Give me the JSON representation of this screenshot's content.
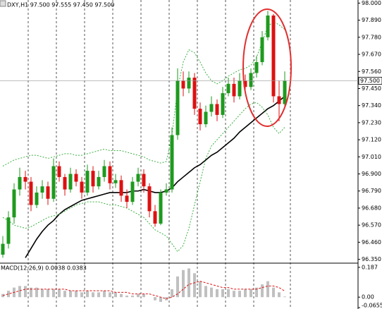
{
  "chart_data": [
    {
      "type": "candlestick",
      "title": "DXY,H1 97.500 97.555 97.450 97.500",
      "up_color": "#1e9a1e",
      "down_color": "#dd1111",
      "grid": true,
      "ylim": [
        96.33,
        98.02
      ],
      "yticks": [
        {
          "value": 98.0,
          "label": "98.000"
        },
        {
          "value": 97.89,
          "label": "97.890"
        },
        {
          "value": 97.78,
          "label": "97.780"
        },
        {
          "value": 97.67,
          "label": "97.670"
        },
        {
          "value": 97.56,
          "label": "97.560"
        },
        {
          "value": 97.45,
          "label": "97.450"
        },
        {
          "value": 97.34,
          "label": "97.340"
        },
        {
          "value": 97.23,
          "label": "97.230"
        },
        {
          "value": 97.12,
          "label": "97.120"
        },
        {
          "value": 97.01,
          "label": "97.010"
        },
        {
          "value": 96.9,
          "label": "96.900"
        },
        {
          "value": 96.79,
          "label": "96.790"
        },
        {
          "value": 96.68,
          "label": "96.680"
        },
        {
          "value": 96.57,
          "label": "96.570"
        },
        {
          "value": 96.46,
          "label": "96.460"
        },
        {
          "value": 96.35,
          "label": "96.350"
        }
      ],
      "last_price": {
        "value": 97.5,
        "label": "97.500"
      },
      "open": [
        96.38,
        96.45,
        96.62,
        96.8,
        96.88,
        96.85,
        96.7,
        96.78,
        96.82,
        96.74,
        96.95,
        96.88,
        96.8,
        96.9,
        96.85,
        96.78,
        96.92,
        96.82,
        96.88,
        96.95,
        96.84,
        96.86,
        96.76,
        96.72,
        96.85,
        96.9,
        96.82,
        96.66,
        96.58,
        96.78,
        96.8,
        97.15,
        97.5,
        97.45,
        97.52,
        97.32,
        97.22,
        97.3,
        97.35,
        97.28,
        97.42,
        97.48,
        97.4,
        97.5,
        97.46,
        97.55,
        97.62,
        97.78,
        97.92,
        97.4,
        97.35
      ],
      "high": [
        96.5,
        96.66,
        96.84,
        96.94,
        96.92,
        96.88,
        96.82,
        96.86,
        96.85,
        97.0,
        96.98,
        96.9,
        96.94,
        96.93,
        96.88,
        96.96,
        96.95,
        96.92,
        96.99,
        96.98,
        96.9,
        96.89,
        96.8,
        96.88,
        96.94,
        96.93,
        96.84,
        96.7,
        96.8,
        96.84,
        97.2,
        97.58,
        97.56,
        97.56,
        97.55,
        97.36,
        97.34,
        97.4,
        97.38,
        97.46,
        97.52,
        97.52,
        97.55,
        97.54,
        97.58,
        97.66,
        97.82,
        97.95,
        97.93,
        97.5,
        97.56
      ],
      "low": [
        96.36,
        96.42,
        96.58,
        96.76,
        96.8,
        96.66,
        96.68,
        96.74,
        96.7,
        96.72,
        96.85,
        96.76,
        96.78,
        96.82,
        96.74,
        96.76,
        96.78,
        96.8,
        96.85,
        96.8,
        96.81,
        96.72,
        96.68,
        96.7,
        96.82,
        96.78,
        96.62,
        96.56,
        96.57,
        96.76,
        96.78,
        97.12,
        97.4,
        97.42,
        97.28,
        97.18,
        97.2,
        97.27,
        97.24,
        97.26,
        97.4,
        97.36,
        97.38,
        97.44,
        97.44,
        97.52,
        97.6,
        97.76,
        97.36,
        97.24,
        97.33
      ],
      "close": [
        96.45,
        96.62,
        96.8,
        96.88,
        96.85,
        96.7,
        96.78,
        96.82,
        96.74,
        96.95,
        96.88,
        96.8,
        96.9,
        96.85,
        96.78,
        96.92,
        96.82,
        96.88,
        96.95,
        96.84,
        96.86,
        96.76,
        96.72,
        96.85,
        96.9,
        96.82,
        96.66,
        96.58,
        96.78,
        96.8,
        97.15,
        97.5,
        97.45,
        97.52,
        97.32,
        97.22,
        97.3,
        97.35,
        97.28,
        97.42,
        97.48,
        97.4,
        97.5,
        97.46,
        97.55,
        97.62,
        97.78,
        97.92,
        97.4,
        97.35,
        97.5
      ],
      "lines": [
        {
          "color": "#000000",
          "style": "solid",
          "values": [
            null,
            null,
            null,
            null,
            96.36,
            96.42,
            96.48,
            96.53,
            96.57,
            96.6,
            96.64,
            96.67,
            96.69,
            96.71,
            96.73,
            96.74,
            96.75,
            96.76,
            96.77,
            96.78,
            96.78,
            96.78,
            96.78,
            96.79,
            96.79,
            96.8,
            96.79,
            96.78,
            96.78,
            96.79,
            96.81,
            96.85,
            96.88,
            96.91,
            96.94,
            96.96,
            96.99,
            97.02,
            97.04,
            97.07,
            97.1,
            97.13,
            97.17,
            97.2,
            97.23,
            97.26,
            97.29,
            97.32,
            97.34,
            97.37,
            97.4
          ]
        },
        {
          "color": "#3cb043",
          "style": "dotted",
          "values": [
            96.95,
            96.97,
            96.99,
            97.0,
            97.01,
            97.02,
            97.02,
            97.01,
            97.0,
            97.01,
            97.02,
            97.03,
            97.03,
            97.02,
            97.02,
            97.03,
            97.04,
            97.05,
            97.06,
            97.05,
            97.05,
            97.05,
            97.04,
            97.03,
            97.02,
            97.01,
            96.99,
            96.98,
            96.97,
            96.98,
            97.15,
            97.45,
            97.62,
            97.7,
            97.68,
            97.62,
            97.55,
            97.5,
            97.48,
            97.5,
            97.53,
            97.55,
            97.57,
            97.58,
            97.6,
            97.65,
            97.75,
            97.85,
            97.88,
            97.86,
            97.83
          ]
        },
        {
          "color": "#3cb043",
          "style": "dotted",
          "values": [
            96.62,
            96.6,
            96.57,
            96.56,
            96.55,
            96.56,
            96.58,
            96.6,
            96.62,
            96.63,
            96.64,
            96.66,
            96.68,
            96.7,
            96.71,
            96.72,
            96.72,
            96.72,
            96.71,
            96.7,
            96.7,
            96.69,
            96.68,
            96.66,
            96.64,
            96.62,
            96.58,
            96.54,
            96.52,
            96.5,
            96.45,
            96.4,
            96.44,
            96.55,
            96.7,
            96.85,
            97.0,
            97.08,
            97.12,
            97.16,
            97.2,
            97.24,
            97.28,
            97.32,
            97.35,
            97.36,
            97.33,
            97.28,
            97.2,
            97.16,
            97.2
          ]
        }
      ]
    },
    {
      "type": "macd",
      "title": "MACD(12,26,9) 0.0038 0.0383",
      "ylim": [
        -0.0655,
        0.2
      ],
      "yticks": [
        0.187,
        {
          "value": 0,
          "label": "0.00"
        },
        -0.0655
      ],
      "histogram": {
        "color": "#c0c0c0",
        "values": [
          0.02,
          0.04,
          0.06,
          0.07,
          0.07,
          0.06,
          0.06,
          0.05,
          0.05,
          0.05,
          0.05,
          0.04,
          0.04,
          0.04,
          0.03,
          0.04,
          0.03,
          0.03,
          0.04,
          0.03,
          0.03,
          0.02,
          0.01,
          0.01,
          0.02,
          0.02,
          0.0,
          -0.02,
          -0.03,
          -0.02,
          0.05,
          0.13,
          0.17,
          0.18,
          0.15,
          0.1,
          0.07,
          0.06,
          0.05,
          0.05,
          0.05,
          0.04,
          0.04,
          0.05,
          0.05,
          0.06,
          0.08,
          0.1,
          0.06,
          0.03,
          0.0038
        ]
      },
      "signal": {
        "color": "#dd1111",
        "values": [
          0.01,
          0.02,
          0.03,
          0.04,
          0.05,
          0.05,
          0.05,
          0.05,
          0.05,
          0.05,
          0.05,
          0.05,
          0.04,
          0.04,
          0.04,
          0.04,
          0.04,
          0.04,
          0.04,
          0.04,
          0.03,
          0.03,
          0.03,
          0.02,
          0.02,
          0.02,
          0.02,
          0.01,
          0.0,
          -0.01,
          0.0,
          0.02,
          0.05,
          0.08,
          0.09,
          0.1,
          0.09,
          0.08,
          0.07,
          0.06,
          0.06,
          0.05,
          0.05,
          0.05,
          0.05,
          0.05,
          0.06,
          0.07,
          0.07,
          0.06,
          0.0383
        ]
      }
    }
  ]
}
